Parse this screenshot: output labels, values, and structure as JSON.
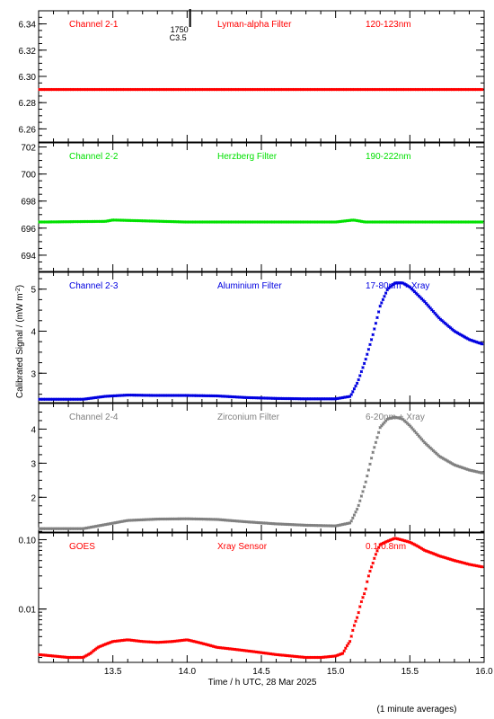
{
  "figure": {
    "ylabel": "Calibrated Signal / (mW m",
    "ylabel_exp": "-2",
    "ylabel_close": ")",
    "xlabel": "Time / h UTC, 28 Mar 2025",
    "footnote": "(1 minute averages)",
    "flare_marker": {
      "time_label": "1750",
      "class_label": "C3.5",
      "x": 14.02
    }
  },
  "x_ticks": [
    13.5,
    14.0,
    14.5,
    15.0,
    15.5,
    16.0
  ],
  "x_tick_labels": [
    "13.5",
    "14.0",
    "14.5",
    "15.0",
    "15.5",
    "16.0"
  ],
  "chart_data": [
    {
      "type": "scatter",
      "channel": "Channel 2-1",
      "filter": "Lyman-alpha Filter",
      "band": "120-123nm",
      "color": "#ff0000",
      "xlim": [
        13.0,
        16.0
      ],
      "ylim": [
        6.25,
        6.35
      ],
      "scale": "linear",
      "y_ticks": [
        6.26,
        6.28,
        6.3,
        6.32,
        6.34
      ],
      "y_tick_labels": [
        "6.26",
        "6.28",
        "6.30",
        "6.32",
        "6.34"
      ],
      "series": [
        {
          "x": [
            13.0,
            13.5,
            14.0,
            14.5,
            15.0,
            15.5,
            16.0
          ],
          "y": [
            6.29,
            6.29,
            6.29,
            6.29,
            6.29,
            6.29,
            6.29
          ]
        }
      ]
    },
    {
      "type": "scatter",
      "channel": "Channel 2-2",
      "filter": "Herzberg Filter",
      "band": "190-222nm",
      "color": "#00e000",
      "xlim": [
        13.0,
        16.0
      ],
      "ylim": [
        692.8,
        702.3
      ],
      "scale": "linear",
      "y_ticks": [
        694,
        696,
        698,
        700,
        702
      ],
      "y_tick_labels": [
        "694",
        "696",
        "698",
        "700",
        "702"
      ],
      "series": [
        {
          "x": [
            13.0,
            13.45,
            13.5,
            14.0,
            14.5,
            15.0,
            15.12,
            15.2,
            15.5,
            16.0
          ],
          "y": [
            696.45,
            696.5,
            696.6,
            696.45,
            696.45,
            696.45,
            696.6,
            696.45,
            696.45,
            696.45
          ]
        }
      ]
    },
    {
      "type": "scatter",
      "channel": "Channel 2-3",
      "filter": "Aluminium Filter",
      "band": "17-80nm + Xray",
      "color": "#0000e0",
      "xlim": [
        13.0,
        16.0
      ],
      "ylim": [
        2.3,
        5.4
      ],
      "scale": "linear",
      "y_ticks": [
        3,
        4,
        5
      ],
      "y_tick_labels": [
        "3",
        "4",
        "5"
      ],
      "series": [
        {
          "x": [
            13.0,
            13.3,
            13.45,
            13.6,
            13.8,
            14.0,
            14.2,
            14.4,
            14.6,
            14.8,
            15.0,
            15.1,
            15.15,
            15.2,
            15.25,
            15.3,
            15.35,
            15.4,
            15.45,
            15.5,
            15.6,
            15.7,
            15.8,
            15.9,
            16.0
          ],
          "y": [
            2.38,
            2.38,
            2.45,
            2.48,
            2.47,
            2.47,
            2.46,
            2.42,
            2.4,
            2.39,
            2.39,
            2.45,
            2.8,
            3.3,
            3.9,
            4.6,
            5.0,
            5.15,
            5.15,
            5.05,
            4.7,
            4.3,
            4.0,
            3.8,
            3.68
          ]
        }
      ]
    },
    {
      "type": "scatter",
      "channel": "Channel 2-4",
      "filter": "Zirconium Filter",
      "band": "6-20nm + Xray",
      "color": "#808080",
      "xlim": [
        13.0,
        16.0
      ],
      "ylim": [
        0.98,
        4.75
      ],
      "scale": "linear",
      "y_ticks": [
        2,
        3,
        4
      ],
      "y_tick_labels": [
        "2",
        "3",
        "4"
      ],
      "series": [
        {
          "x": [
            13.0,
            13.3,
            13.45,
            13.6,
            13.8,
            14.0,
            14.2,
            14.4,
            14.6,
            14.8,
            15.0,
            15.1,
            15.15,
            15.2,
            15.25,
            15.3,
            15.35,
            15.4,
            15.45,
            15.5,
            15.6,
            15.7,
            15.8,
            15.9,
            16.0
          ],
          "y": [
            1.08,
            1.08,
            1.2,
            1.32,
            1.36,
            1.37,
            1.35,
            1.28,
            1.22,
            1.18,
            1.16,
            1.25,
            1.7,
            2.4,
            3.3,
            4.05,
            4.3,
            4.35,
            4.3,
            4.1,
            3.6,
            3.2,
            2.95,
            2.8,
            2.7
          ]
        }
      ]
    },
    {
      "type": "scatter",
      "channel": "GOES",
      "filter": "Xray Sensor",
      "band": "0.1-0.8nm",
      "color": "#ff0000",
      "xlim": [
        13.0,
        16.0
      ],
      "ylim": [
        0.0017,
        0.125
      ],
      "scale": "log",
      "y_ticks": [
        0.01,
        0.1
      ],
      "y_tick_labels": [
        "0.01",
        "0.10"
      ],
      "series": [
        {
          "x": [
            13.0,
            13.2,
            13.3,
            13.35,
            13.4,
            13.5,
            13.6,
            13.7,
            13.8,
            13.9,
            14.0,
            14.1,
            14.2,
            14.4,
            14.6,
            14.8,
            14.9,
            15.0,
            15.05,
            15.1,
            15.15,
            15.2,
            15.25,
            15.3,
            15.4,
            15.5,
            15.6,
            15.7,
            15.8,
            15.9,
            16.0
          ],
          "y": [
            0.0022,
            0.002,
            0.002,
            0.0023,
            0.0028,
            0.0034,
            0.0036,
            0.0034,
            0.0033,
            0.0034,
            0.0036,
            0.0032,
            0.0028,
            0.0025,
            0.0022,
            0.002,
            0.002,
            0.0021,
            0.0023,
            0.0035,
            0.008,
            0.018,
            0.045,
            0.085,
            0.105,
            0.092,
            0.07,
            0.058,
            0.05,
            0.044,
            0.04
          ]
        }
      ]
    }
  ]
}
